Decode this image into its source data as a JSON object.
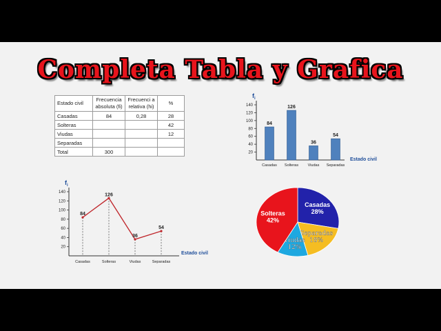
{
  "title": "Completa Tabla y Grafica",
  "table": {
    "headers": [
      "Estado civil",
      "Frecuencia absoluta (fi)",
      "Frecuenci a relativa (hi)",
      "%"
    ],
    "rows": [
      [
        "Casadas",
        "84",
        "0,28",
        "28"
      ],
      [
        "Solteras",
        "",
        "",
        "42"
      ],
      [
        "Viudas",
        "",
        "",
        "12"
      ],
      [
        "Separadas",
        "",
        "",
        ""
      ],
      [
        "Total",
        "300",
        "",
        ""
      ]
    ]
  },
  "chart_data": [
    {
      "type": "bar",
      "categories": [
        "Casadas",
        "Solteras",
        "Viudas",
        "Separadas"
      ],
      "values": [
        84,
        126,
        36,
        54
      ],
      "ylabel": "fi",
      "xlabel": "Estado civil",
      "yticks": [
        20,
        40,
        60,
        80,
        100,
        120,
        140
      ],
      "ylim": [
        0,
        140
      ],
      "color": "#4f81bd"
    },
    {
      "type": "line",
      "categories": [
        "Casadas",
        "Solteras",
        "Viudas",
        "Separadas"
      ],
      "values": [
        84,
        126,
        36,
        54
      ],
      "ylabel": "fi",
      "xlabel": "Estado civil",
      "yticks": [
        20,
        40,
        60,
        80,
        100,
        120,
        140
      ],
      "ylim": [
        0,
        140
      ],
      "color": "#c0282d"
    },
    {
      "type": "pie",
      "slices": [
        {
          "label": "Casadas",
          "value": 28,
          "text": "28%",
          "color": "#2222aa"
        },
        {
          "label": "Separadas",
          "value": 18,
          "text": "18%",
          "color": "#f5bd22"
        },
        {
          "label": "Viudas",
          "value": 12,
          "text": "12%",
          "color": "#1ea8e0"
        },
        {
          "label": "Solteras",
          "value": 42,
          "text": "42%",
          "color": "#e8141c"
        }
      ]
    }
  ]
}
